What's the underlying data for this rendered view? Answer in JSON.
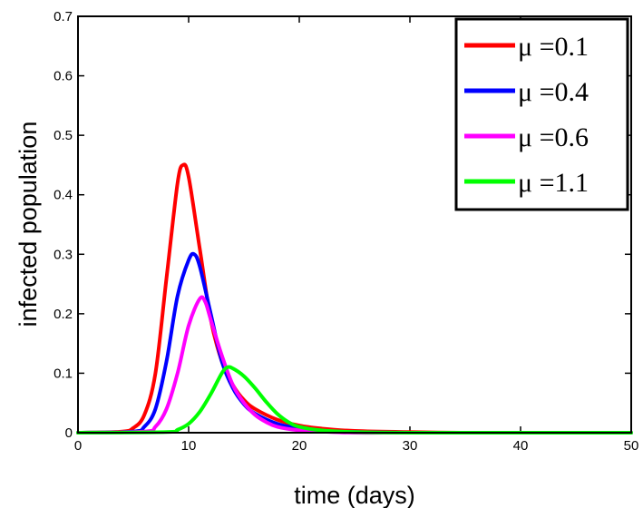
{
  "chart_data": {
    "type": "line",
    "title": "",
    "xlabel": "time (days)",
    "ylabel": "infected population",
    "xlim": [
      0,
      50
    ],
    "ylim": [
      0,
      0.7
    ],
    "xticks": [
      0,
      10,
      20,
      30,
      40,
      50
    ],
    "xtick_labels": [
      "0",
      "10",
      "20",
      "30",
      "40",
      "50"
    ],
    "yticks": [
      0,
      0.1,
      0.2,
      0.3,
      0.4,
      0.5,
      0.6,
      0.7
    ],
    "ytick_labels": [
      "0",
      "0.1",
      "0.2",
      "0.3",
      "0.4",
      "0.5",
      "0.6",
      "0.7"
    ],
    "grid": false,
    "legend_position": "top-right",
    "series": [
      {
        "name": "μ =0.1",
        "color": "#ff0000",
        "x": [
          0,
          4,
          5,
          6,
          7,
          8,
          9,
          9.5,
          10,
          11,
          12,
          13,
          14,
          15,
          16,
          18,
          20,
          22,
          25,
          30,
          35,
          40,
          50
        ],
        "y": [
          0,
          0.002,
          0.008,
          0.03,
          0.1,
          0.26,
          0.42,
          0.45,
          0.43,
          0.31,
          0.19,
          0.12,
          0.08,
          0.055,
          0.04,
          0.022,
          0.012,
          0.007,
          0.003,
          0.001,
          0,
          0,
          0
        ]
      },
      {
        "name": "μ =0.4",
        "color": "#0000ff",
        "x": [
          0,
          5,
          6,
          7,
          8,
          9,
          10,
          10.5,
          11,
          12,
          13,
          14,
          15,
          16,
          18,
          20,
          22,
          25,
          30,
          40,
          50
        ],
        "y": [
          0,
          0.002,
          0.01,
          0.04,
          0.12,
          0.23,
          0.29,
          0.3,
          0.28,
          0.2,
          0.12,
          0.075,
          0.048,
          0.032,
          0.015,
          0.007,
          0.003,
          0.001,
          0,
          0,
          0
        ]
      },
      {
        "name": "μ =0.6",
        "color": "#ff00ff",
        "x": [
          0,
          6,
          7,
          8,
          9,
          10,
          11,
          11.5,
          12,
          13,
          14,
          15,
          16,
          17,
          18,
          20,
          22,
          25,
          30,
          40,
          50
        ],
        "y": [
          0,
          0.002,
          0.01,
          0.04,
          0.1,
          0.18,
          0.225,
          0.22,
          0.19,
          0.13,
          0.08,
          0.05,
          0.03,
          0.018,
          0.01,
          0.004,
          0.002,
          0,
          0,
          0,
          0
        ]
      },
      {
        "name": "μ =1.1",
        "color": "#00ff00",
        "x": [
          0,
          8,
          9,
          10,
          11,
          12,
          13,
          13.5,
          14,
          15,
          16,
          17,
          18,
          19,
          20,
          22,
          25,
          30,
          40,
          50
        ],
        "y": [
          0,
          0.001,
          0.005,
          0.015,
          0.035,
          0.065,
          0.1,
          0.11,
          0.108,
          0.095,
          0.075,
          0.052,
          0.032,
          0.018,
          0.01,
          0.004,
          0.001,
          0,
          0,
          0
        ]
      }
    ]
  }
}
